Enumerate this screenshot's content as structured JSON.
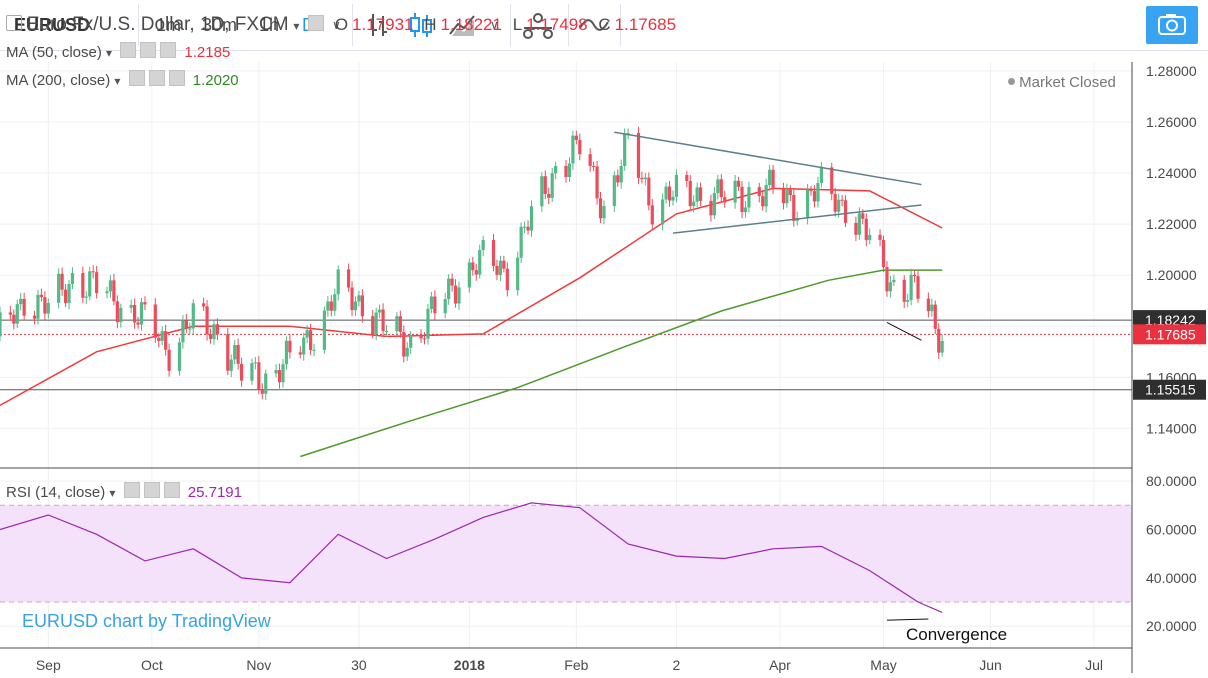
{
  "toolbar": {
    "symbol": "EURUSD",
    "intervals": [
      "1m",
      "30m",
      "1h",
      "D"
    ],
    "active_interval": "D"
  },
  "legend": {
    "title": "Euro Fx/U.S. Dollar, 1D, FXCM",
    "o_label": "O",
    "o_value": "1.17931",
    "h_label": "H",
    "h_value": "1.18221",
    "l_label": "L",
    "l_value": "1.17498",
    "c_label": "C",
    "c_value": "1.17685",
    "ma50_label": "MA (50, close)",
    "ma50_value": "1.2185",
    "ma200_label": "MA (200, close)",
    "ma200_value": "1.2020",
    "rsi_label": "RSI (14, close)",
    "rsi_value": "25.7191",
    "market_status": "Market Closed"
  },
  "colors": {
    "up": "#53b987",
    "down": "#eb4d5c",
    "ma50": "#ef3b3b",
    "ma200": "#4e9a2c",
    "rsi": "#9c27b0",
    "rsi_band": "#f3e2f9",
    "accent": "#2196f3",
    "price_label": "#e9313f",
    "level_label": "#2f2f2f"
  },
  "watermark": "EURUSD chart by TradingView",
  "annotation": "Convergence",
  "chart_data": [
    {
      "type": "candlestick",
      "title": "Euro Fx/U.S. Dollar, 1D, FXCM",
      "y_ticks": [
        1.14,
        1.16,
        1.18,
        1.2,
        1.22,
        1.24,
        1.26,
        1.28
      ],
      "y_tick_labels": [
        "1.14000",
        "1.16000",
        "1.18000",
        "1.20000",
        "1.22000",
        "1.24000",
        "1.26000",
        "1.28000"
      ],
      "ylim": [
        1.1245,
        1.2835
      ],
      "x_ticks": [
        "Sep",
        "Oct",
        "Nov",
        "30",
        "2018",
        "Feb",
        "2",
        "Apr",
        "May",
        "Jun",
        "Jul"
      ],
      "x_tick_dates": [
        "2017-09-01",
        "2017-10-01",
        "2017-11-01",
        "2017-11-30",
        "2018-01-01",
        "2018-02-01",
        "2018-03-02",
        "2018-04-01",
        "2018-05-01",
        "2018-06-01",
        "2018-07-01"
      ],
      "x_range": [
        "2017-08-18",
        "2018-07-12"
      ],
      "series": [
        {
          "name": "EURUSD",
          "x": [
            "2017-08-18",
            "2017-08-25",
            "2017-09-01",
            "2017-09-08",
            "2017-09-15",
            "2017-09-22",
            "2017-09-29",
            "2017-10-06",
            "2017-10-13",
            "2017-10-20",
            "2017-10-27",
            "2017-11-03",
            "2017-11-10",
            "2017-11-17",
            "2017-11-24",
            "2017-12-01",
            "2017-12-08",
            "2017-12-15",
            "2017-12-22",
            "2017-12-29",
            "2018-01-05",
            "2018-01-12",
            "2018-01-19",
            "2018-01-26",
            "2018-02-02",
            "2018-02-09",
            "2018-02-16",
            "2018-02-23",
            "2018-03-02",
            "2018-03-09",
            "2018-03-16",
            "2018-03-23",
            "2018-03-30",
            "2018-04-06",
            "2018-04-13",
            "2018-04-20",
            "2018-04-27",
            "2018-05-04",
            "2018-05-11",
            "2018-05-18"
          ],
          "close": [
            1.176,
            1.192,
            1.186,
            1.2,
            1.194,
            1.19,
            1.181,
            1.172,
            1.182,
            1.179,
            1.16,
            1.161,
            1.166,
            1.179,
            1.193,
            1.19,
            1.177,
            1.175,
            1.185,
            1.2,
            1.205,
            1.203,
            1.222,
            1.243,
            1.249,
            1.228,
            1.25,
            1.229,
            1.231,
            1.233,
            1.229,
            1.233,
            1.232,
            1.229,
            1.233,
            1.228,
            1.213,
            1.197,
            1.192,
            1.1769
          ]
        },
        {
          "name": "MA (50, close)",
          "x": [
            "2017-08-18",
            "2017-09-15",
            "2017-10-13",
            "2017-11-10",
            "2017-12-08",
            "2018-01-05",
            "2018-02-02",
            "2018-03-02",
            "2018-03-30",
            "2018-04-27",
            "2018-05-18"
          ],
          "y": [
            1.149,
            1.17,
            1.18,
            1.18,
            1.176,
            1.177,
            1.199,
            1.224,
            1.234,
            1.233,
            1.2185
          ]
        },
        {
          "name": "MA (200, close)",
          "x": [
            "2017-11-13",
            "2017-12-15",
            "2018-01-15",
            "2018-02-15",
            "2018-03-15",
            "2018-04-15",
            "2018-05-01",
            "2018-05-18"
          ],
          "y": [
            1.129,
            1.143,
            1.156,
            1.172,
            1.186,
            1.198,
            1.202,
            1.202
          ]
        }
      ],
      "price_labels": [
        "1.18242",
        "1.17685",
        "1.15515"
      ],
      "horizontal_levels": [
        1.18242,
        1.15515
      ],
      "last_close": 1.17685
    },
    {
      "type": "line",
      "title": "RSI (14, close)",
      "y_ticks": [
        20,
        40,
        60,
        80
      ],
      "y_tick_labels": [
        "20.0000",
        "40.0000",
        "60.0000",
        "80.0000"
      ],
      "ylim": [
        11,
        85
      ],
      "band": [
        30,
        70
      ],
      "x": [
        "2017-08-18",
        "2017-09-01",
        "2017-09-15",
        "2017-09-29",
        "2017-10-13",
        "2017-10-27",
        "2017-11-10",
        "2017-11-24",
        "2017-12-08",
        "2017-12-22",
        "2018-01-05",
        "2018-01-19",
        "2018-02-02",
        "2018-02-16",
        "2018-03-02",
        "2018-03-16",
        "2018-03-30",
        "2018-04-13",
        "2018-04-27",
        "2018-05-11",
        "2018-05-18"
      ],
      "y": [
        60,
        66,
        58,
        47,
        52,
        40,
        38,
        58,
        48,
        56,
        65,
        71,
        69,
        54,
        49,
        48,
        52,
        53,
        43,
        30,
        25.7
      ]
    }
  ]
}
